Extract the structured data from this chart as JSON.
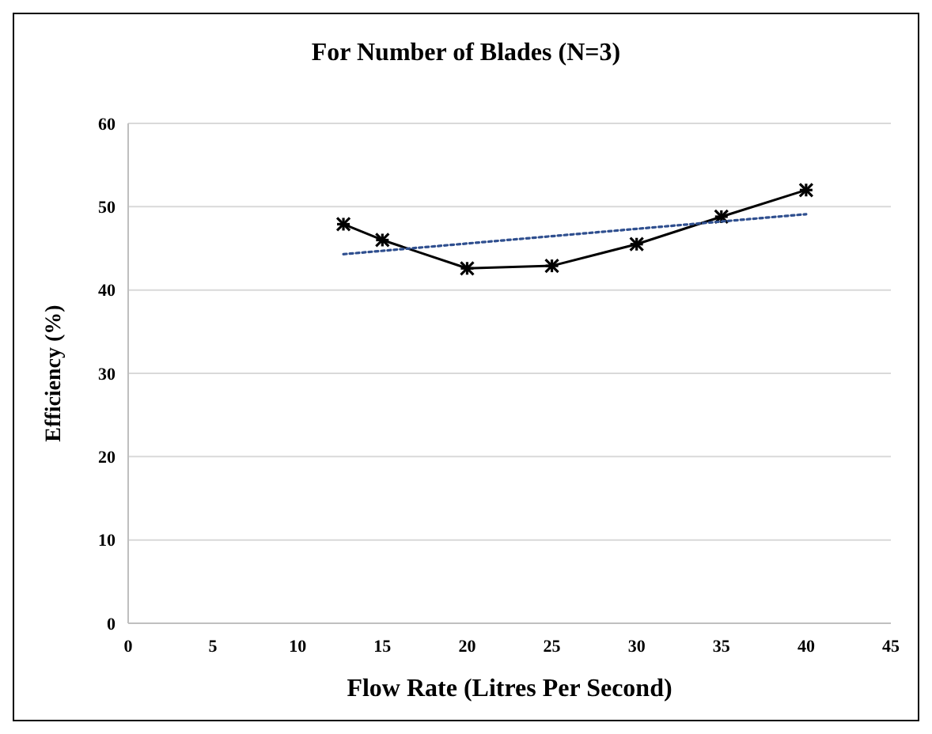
{
  "chart_data": {
    "type": "line",
    "title": "For Number of Blades (N=3)",
    "xlabel": "Flow Rate (Litres Per Second)",
    "ylabel": "Efficiency (%)",
    "xlim": [
      0,
      45
    ],
    "xticks": [
      0,
      5,
      10,
      15,
      20,
      25,
      30,
      35,
      40,
      45
    ],
    "ylim": [
      0,
      60
    ],
    "yticks": [
      0,
      10,
      20,
      30,
      40,
      50,
      60
    ],
    "grid": "y",
    "series": [
      {
        "color": "#000000",
        "marker": "cross",
        "line_style": "solid",
        "x": [
          12.7,
          15,
          20,
          25,
          30,
          35,
          40
        ],
        "values": [
          47.9,
          46.0,
          42.6,
          42.9,
          45.5,
          48.8,
          52.0
        ]
      },
      {
        "color": "#2f4f8f",
        "marker": "none",
        "line_style": "dotted",
        "x": [
          12.7,
          40
        ],
        "values": [
          44.3,
          49.1
        ]
      }
    ]
  }
}
